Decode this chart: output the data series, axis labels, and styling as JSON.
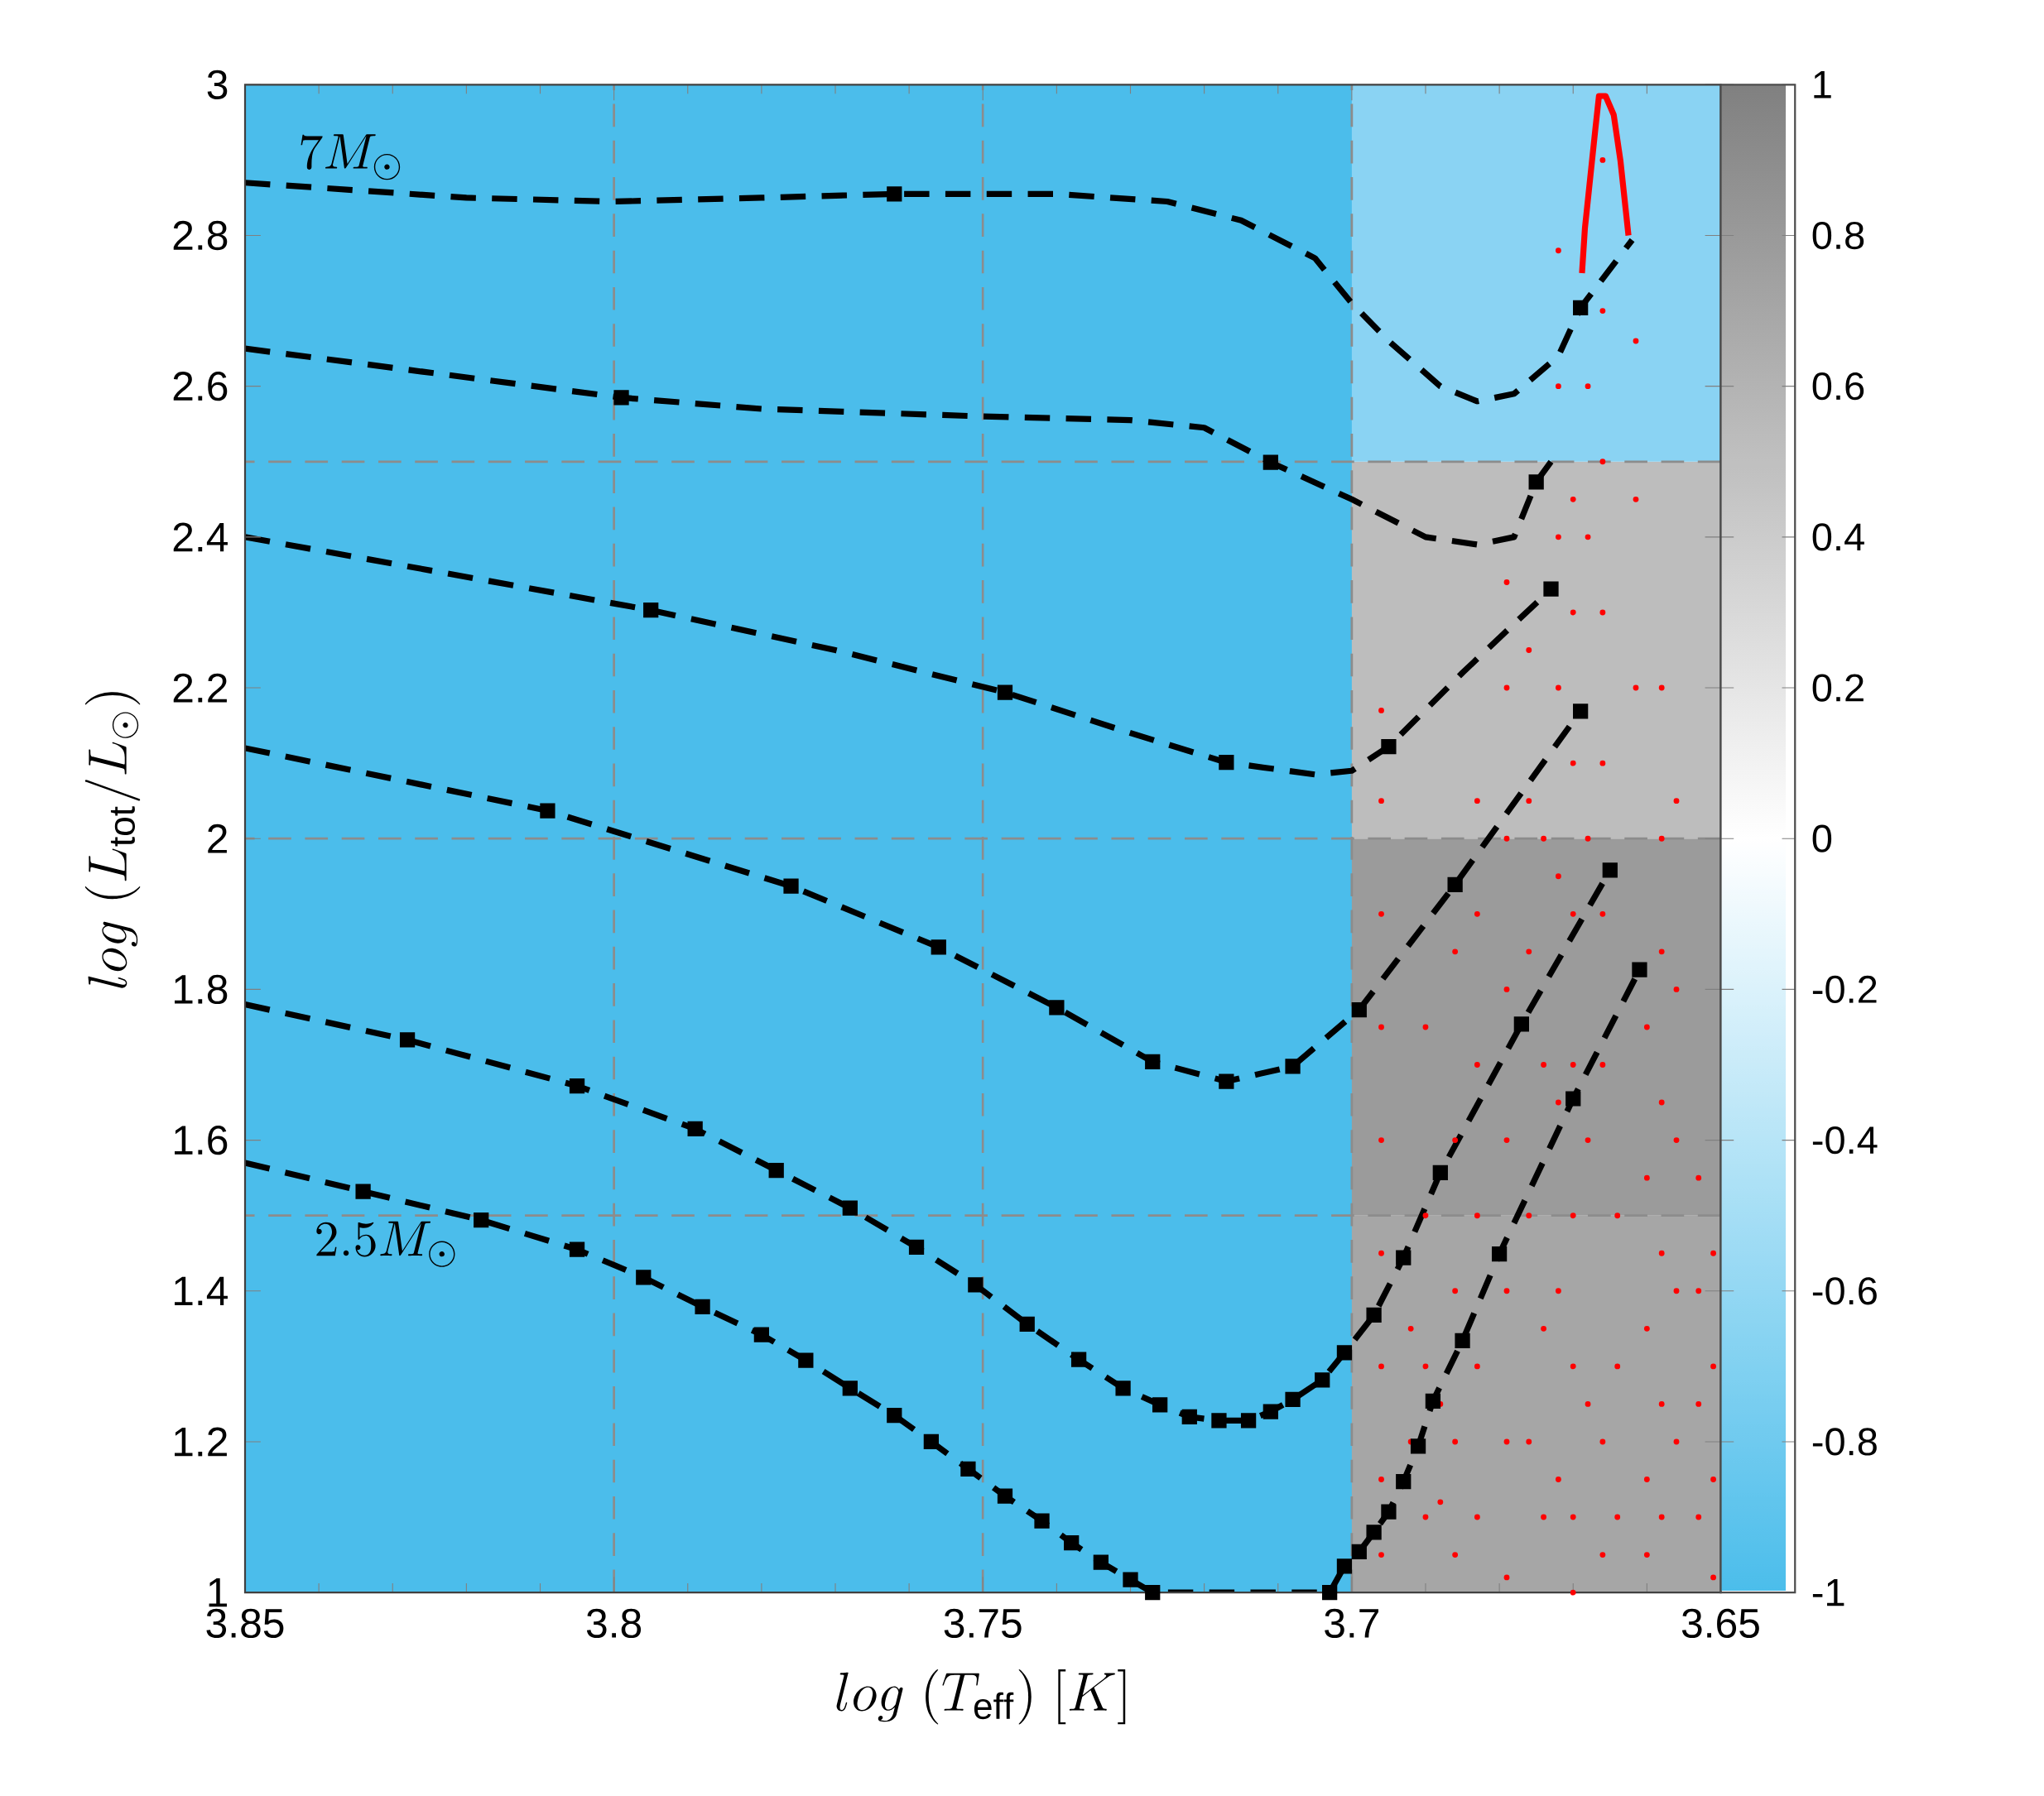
{
  "chart_data": {
    "type": "line",
    "xlabel": "log\\;(T_\\mathrm{eff})\\;[K]",
    "ylabel": "log\\;(L_\\mathrm{tot}/L_\\odot)",
    "xlim": [
      3.85,
      3.65
    ],
    "xticks": [
      3.85,
      3.8,
      3.75,
      3.7,
      3.65
    ],
    "ylim": [
      1,
      3
    ],
    "yticks": [
      1,
      1.2,
      1.4,
      1.6,
      1.8,
      2,
      2.2,
      2.4,
      2.6,
      2.8,
      3
    ],
    "clim": [
      -1,
      1
    ],
    "cticks": [
      -1,
      -0.8,
      -0.6,
      -0.4,
      -0.2,
      0,
      0.2,
      0.4,
      0.6,
      0.8,
      1
    ],
    "bands": [
      {
        "axis": "y",
        "from": 1,
        "to": 1.5,
        "color": "#a6a6a6"
      },
      {
        "axis": "y",
        "from": 1.5,
        "to": 2,
        "color": "#9b9b9b"
      },
      {
        "axis": "y",
        "from": 2,
        "to": 2.5,
        "color": "#bdbdbd"
      },
      {
        "axis": "y",
        "from": 2.5,
        "to": 3,
        "color": "#8ad3f3"
      },
      {
        "axis": "x",
        "from": 3.85,
        "to": 3.7,
        "color": "#4bbdeb"
      }
    ],
    "ref_lines": [
      {
        "axis": "x",
        "value": 3.8,
        "color": "#8c8c8c",
        "line_style": "dashed"
      },
      {
        "axis": "x",
        "value": 3.75,
        "color": "#8c8c8c",
        "line_style": "dashed"
      },
      {
        "axis": "x",
        "value": 3.7,
        "color": "#8c8c8c",
        "line_style": "dashed"
      },
      {
        "axis": "y",
        "value": 1.5,
        "color": "#8c8c8c",
        "line_style": "dashed"
      },
      {
        "axis": "y",
        "value": 2,
        "color": "#8c8c8c",
        "line_style": "dashed"
      },
      {
        "axis": "y",
        "value": 2.5,
        "color": "#8c8c8c",
        "line_style": "dashed"
      }
    ],
    "annotations": [
      "7M_\\odot",
      "2.5M_\\odot"
    ],
    "series": [
      {
        "type": "scatter",
        "color": "#ff0000",
        "marker": "circle",
        "x": [
          3.696,
          3.696,
          3.696,
          3.696,
          3.696,
          3.696,
          3.696,
          3.696,
          3.696,
          3.69,
          3.69,
          3.69,
          3.69,
          3.686,
          3.686,
          3.686,
          3.686,
          3.686,
          3.683,
          3.683,
          3.683,
          3.683,
          3.683,
          3.683,
          3.679,
          3.679,
          3.679,
          3.679,
          3.679,
          3.679,
          3.679,
          3.679,
          3.676,
          3.676,
          3.676,
          3.676,
          3.676,
          3.674,
          3.674,
          3.674,
          3.674,
          3.672,
          3.672,
          3.672,
          3.672,
          3.672,
          3.672,
          3.672,
          3.672,
          3.67,
          3.67,
          3.67,
          3.67,
          3.67,
          3.67,
          3.67,
          3.67,
          3.67,
          3.668,
          3.668,
          3.668,
          3.668,
          3.668,
          3.666,
          3.666,
          3.666,
          3.666,
          3.666,
          3.666,
          3.666,
          3.666,
          3.666,
          3.664,
          3.664,
          3.664,
          3.6615,
          3.6615,
          3.6615,
          3.66,
          3.66,
          3.66,
          3.66,
          3.66,
          3.658,
          3.658,
          3.658,
          3.658,
          3.658,
          3.658,
          3.658,
          3.656,
          3.656,
          3.656,
          3.656,
          3.656,
          3.653,
          3.653,
          3.653,
          3.653,
          3.651,
          3.651,
          3.651,
          3.651,
          3.692,
          3.692,
          3.688,
          3.688
        ],
        "values": [
          2.17,
          2.05,
          1.9,
          1.75,
          1.6,
          1.45,
          1.3,
          1.15,
          1.05,
          1.75,
          1.5,
          1.3,
          1.1,
          1.85,
          1.6,
          1.4,
          1.2,
          1.05,
          2.05,
          1.9,
          1.7,
          1.5,
          1.3,
          1.1,
          2.34,
          2.2,
          2.0,
          1.8,
          1.6,
          1.4,
          1.2,
          1.02,
          2.25,
          2.05,
          1.85,
          1.5,
          1.2,
          2.0,
          1.7,
          1.35,
          1.1,
          2.78,
          2.6,
          2.4,
          2.2,
          1.95,
          1.65,
          1.4,
          1.15,
          2.45,
          2.3,
          2.1,
          1.9,
          1.7,
          1.5,
          1.3,
          1.1,
          1.0,
          2.6,
          2.4,
          2.0,
          1.6,
          1.25,
          2.9,
          2.7,
          2.5,
          2.3,
          2.1,
          1.9,
          1.7,
          1.2,
          1.05,
          1.5,
          1.3,
          1.1,
          2.66,
          2.45,
          2.2,
          1.75,
          1.55,
          1.35,
          1.15,
          1.05,
          2.2,
          2.0,
          1.85,
          1.65,
          1.45,
          1.25,
          1.1,
          2.05,
          1.8,
          1.6,
          1.4,
          1.2,
          1.55,
          1.4,
          1.25,
          1.1,
          1.45,
          1.3,
          1.15,
          1.02,
          1.35,
          1.2,
          1.25,
          1.12
        ]
      },
      {
        "color": "#ff0000",
        "marker": "none",
        "line_style": "solid",
        "x": [
          3.6625,
          3.6636,
          3.6645,
          3.6656,
          3.6665,
          3.667,
          3.6684,
          3.6688
        ],
        "values": [
          2.8,
          2.9,
          2.96,
          2.985,
          2.985,
          2.94,
          2.81,
          2.75
        ]
      },
      {
        "color": "#000000",
        "marker": "none",
        "line_style": "dashed",
        "x": [
          3.85,
          3.82,
          3.8,
          3.78,
          3.762,
          3.74,
          3.725,
          3.715,
          3.705,
          3.7,
          3.695,
          3.688,
          3.683,
          3.678,
          3.672,
          3.669,
          3.662
        ],
        "values": [
          2.87,
          2.85,
          2.845,
          2.85,
          2.855,
          2.855,
          2.845,
          2.82,
          2.77,
          2.71,
          2.66,
          2.6,
          2.58,
          2.59,
          2.64,
          2.704,
          2.794
        ]
      },
      {
        "color": "#000000",
        "marker": "none",
        "line_style": "dashed",
        "x": [
          3.85,
          3.799,
          3.78,
          3.75,
          3.73,
          3.72,
          3.711,
          3.7,
          3.69,
          3.683,
          3.678,
          3.675,
          3.673
        ],
        "values": [
          2.65,
          2.585,
          2.57,
          2.56,
          2.555,
          2.545,
          2.499,
          2.45,
          2.4,
          2.39,
          2.4,
          2.473,
          2.5
        ]
      },
      {
        "color": "#000000",
        "marker": "none",
        "line_style": "dashed",
        "x": [
          3.85,
          3.795,
          3.77,
          3.747,
          3.73,
          3.717,
          3.705,
          3.7,
          3.695,
          3.685,
          3.673
        ],
        "values": [
          2.4,
          2.303,
          2.25,
          2.194,
          2.14,
          2.101,
          2.085,
          2.09,
          2.122,
          2.22,
          2.331
        ]
      },
      {
        "color": "#000000",
        "marker": "none",
        "line_style": "dashed",
        "x": [
          3.85,
          3.809,
          3.776,
          3.756,
          3.74,
          3.727,
          3.717,
          3.708,
          3.699,
          3.686,
          3.669
        ],
        "values": [
          2.12,
          2.037,
          1.937,
          1.856,
          1.776,
          1.704,
          1.678,
          1.698,
          1.773,
          1.939,
          2.169
        ]
      },
      {
        "color": "#000000",
        "marker": "none",
        "line_style": "dashed",
        "x": [
          3.85,
          3.828,
          3.805,
          3.789,
          3.778,
          3.768,
          3.759,
          3.751,
          3.744,
          3.737,
          3.731,
          3.726,
          3.722,
          3.718,
          3.714,
          3.711,
          3.708,
          3.704,
          3.701,
          3.697,
          3.693,
          3.688,
          3.677,
          3.665
        ],
        "values": [
          1.78,
          1.733,
          1.672,
          1.615,
          1.56,
          1.51,
          1.458,
          1.408,
          1.356,
          1.309,
          1.271,
          1.249,
          1.233,
          1.228,
          1.228,
          1.24,
          1.256,
          1.282,
          1.318,
          1.368,
          1.444,
          1.557,
          1.754,
          1.958
        ]
      },
      {
        "color": "#000000",
        "marker": "none",
        "line_style": "dashed",
        "x": [
          3.85,
          3.834,
          3.818,
          3.805,
          3.796,
          3.788,
          3.78,
          3.774,
          3.768,
          3.762,
          3.757,
          3.752,
          3.747,
          3.742,
          3.738,
          3.734,
          3.73,
          3.727,
          3.703,
          3.701,
          3.699,
          3.697,
          3.695,
          3.693,
          3.691,
          3.689,
          3.685,
          3.68,
          3.67,
          3.661
        ],
        "values": [
          1.57,
          1.532,
          1.494,
          1.455,
          1.418,
          1.379,
          1.342,
          1.308,
          1.271,
          1.235,
          1.2,
          1.164,
          1.128,
          1.095,
          1.066,
          1.04,
          1.017,
          1.0,
          1.0,
          1.035,
          1.054,
          1.08,
          1.107,
          1.147,
          1.194,
          1.254,
          1.334,
          1.449,
          1.655,
          1.826
        ]
      },
      {
        "type": "scatter",
        "color": "#000000",
        "marker": "square",
        "x": [
          3.762,
          3.669,
          3.799,
          3.711,
          3.675,
          3.795,
          3.747,
          3.717,
          3.695,
          3.673,
          3.809,
          3.776,
          3.756,
          3.74,
          3.727,
          3.717,
          3.708,
          3.699,
          3.686,
          3.669,
          3.828,
          3.805,
          3.789,
          3.778,
          3.768,
          3.759,
          3.751,
          3.744,
          3.737,
          3.731,
          3.726,
          3.722,
          3.718,
          3.714,
          3.711,
          3.708,
          3.704,
          3.701,
          3.697,
          3.693,
          3.688,
          3.677,
          3.665,
          3.834,
          3.818,
          3.805,
          3.796,
          3.788,
          3.78,
          3.774,
          3.768,
          3.762,
          3.757,
          3.752,
          3.747,
          3.742,
          3.738,
          3.734,
          3.73,
          3.727,
          3.703,
          3.701,
          3.699,
          3.697,
          3.695,
          3.693,
          3.691,
          3.689,
          3.685,
          3.68,
          3.67,
          3.661
        ],
        "values": [
          2.855,
          2.704,
          2.585,
          2.499,
          2.473,
          2.303,
          2.194,
          2.101,
          2.122,
          2.331,
          2.037,
          1.937,
          1.856,
          1.776,
          1.704,
          1.678,
          1.698,
          1.773,
          1.939,
          2.169,
          1.733,
          1.672,
          1.615,
          1.56,
          1.51,
          1.458,
          1.408,
          1.356,
          1.309,
          1.271,
          1.249,
          1.233,
          1.228,
          1.228,
          1.24,
          1.256,
          1.282,
          1.318,
          1.368,
          1.444,
          1.557,
          1.754,
          1.958,
          1.532,
          1.494,
          1.455,
          1.418,
          1.379,
          1.342,
          1.308,
          1.271,
          1.235,
          1.2,
          1.164,
          1.128,
          1.095,
          1.066,
          1.04,
          1.017,
          1.0,
          1.0,
          1.035,
          1.054,
          1.08,
          1.107,
          1.147,
          1.194,
          1.254,
          1.334,
          1.449,
          1.655,
          1.826
        ]
      }
    ]
  }
}
